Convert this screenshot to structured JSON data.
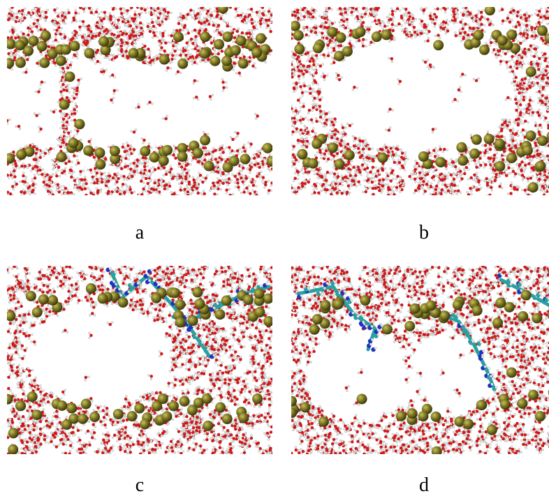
{
  "figure": {
    "panels": [
      {
        "id": "a",
        "label": "a",
        "peptide": false,
        "bridge": true
      },
      {
        "id": "b",
        "label": "b",
        "peptide": false,
        "bridge": false
      },
      {
        "id": "c",
        "label": "c",
        "peptide": true,
        "bridge": false
      },
      {
        "id": "d",
        "label": "d",
        "peptide": true,
        "bridge": false
      }
    ]
  },
  "colors": {
    "oxygen": "#d01818",
    "hydrogen": "#e8e8e8",
    "ion": "#7a7420",
    "carbon": "#2aa0a0",
    "nitrogen": "#2030c0"
  }
}
